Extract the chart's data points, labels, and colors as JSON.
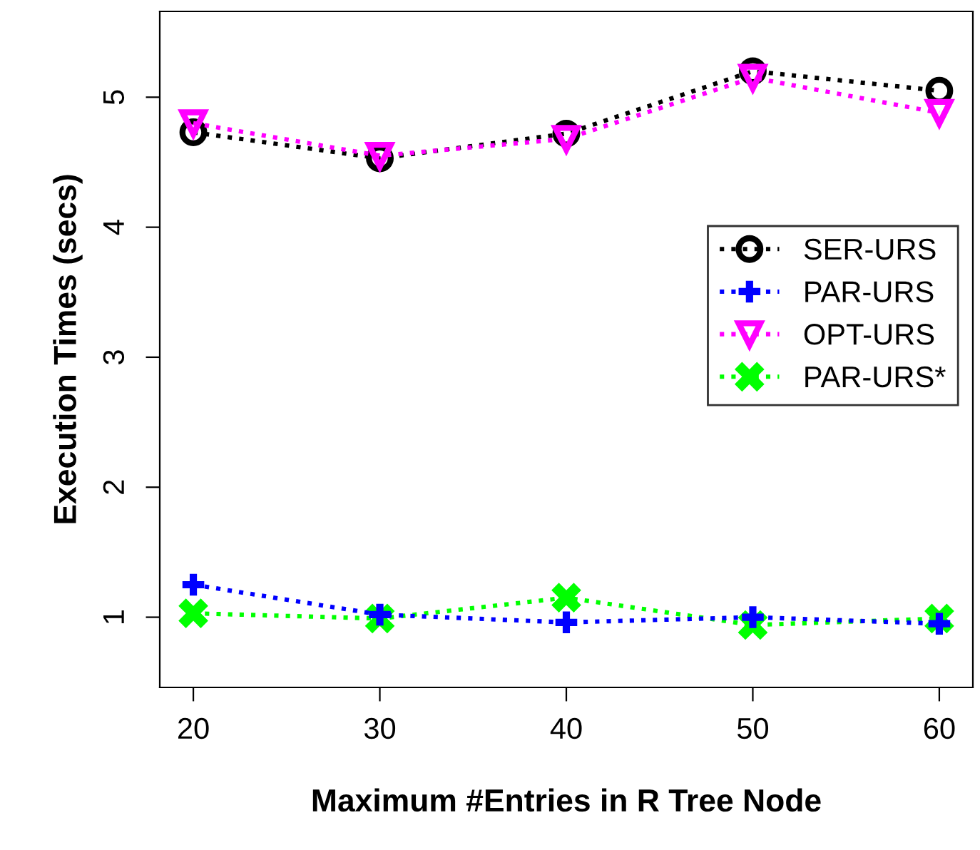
{
  "chart_data": {
    "type": "line",
    "xlabel": "Maximum #Entries in R Tree Node",
    "ylabel": "Execution Times (secs)",
    "x": [
      20,
      30,
      40,
      50,
      60
    ],
    "series": [
      {
        "name": "SER-URS",
        "color": "#000000",
        "marker": "circle",
        "values": [
          4.73,
          4.53,
          4.72,
          5.2,
          5.05
        ]
      },
      {
        "name": "PAR-URS",
        "color": "#0000ff",
        "marker": "cross",
        "values": [
          1.25,
          1.02,
          0.96,
          1.0,
          0.95
        ]
      },
      {
        "name": "OPT-URS",
        "color": "#ff00ff",
        "marker": "triangle",
        "values": [
          4.8,
          4.55,
          4.68,
          5.15,
          4.88
        ]
      },
      {
        "name": "PAR-URS*",
        "color": "#00ff00",
        "marker": "x",
        "values": [
          1.03,
          0.99,
          1.15,
          0.94,
          0.99
        ]
      }
    ],
    "xlim": [
      18.2,
      61.8
    ],
    "ylim": [
      0.46,
      5.66
    ],
    "xticks": [
      20,
      30,
      40,
      50,
      60
    ],
    "yticks": [
      1,
      2,
      3,
      4,
      5
    ],
    "line_style": "dotted",
    "grid": false,
    "legend": "right"
  }
}
